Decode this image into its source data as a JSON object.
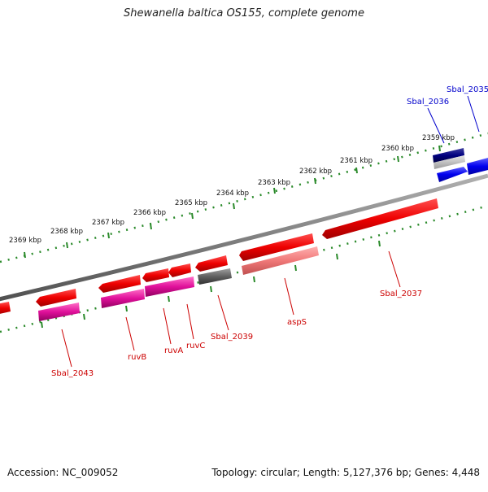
{
  "map": {
    "title": "Shewanella baltica OS155, complete genome",
    "accession": "Accession: NC_009052",
    "summary": "Topology: circular; Length: 5,127,376 bp; Genes: 4,448",
    "tick_labels": [
      "2359 kbp",
      "2360 kbp",
      "2361 kbp",
      "2362 kbp",
      "2363 kbp",
      "2364 kbp",
      "2365 kbp",
      "2366 kbp",
      "2367 kbp",
      "2368 kbp",
      "2369 kbp"
    ],
    "gene_labels": [
      "Sbal_2035",
      "Sbal_2036",
      "Sbal_2037",
      "aspS",
      "Sbal_2039",
      "ruvC",
      "ruvA",
      "ruvB",
      "Sbal_2043"
    ],
    "colors": {
      "backbone": "#808080",
      "tick": "#2a8a2a",
      "gene_forward": "#ff0000",
      "gene_reverse": "#ff0000",
      "rna_blue": "#0000ee",
      "rna_navy": "#000080",
      "magenta": "#e0109a",
      "pink": "#f08080",
      "gray": "#606060",
      "label_red": "#cc0000",
      "label_blue": "#0000cc"
    }
  }
}
